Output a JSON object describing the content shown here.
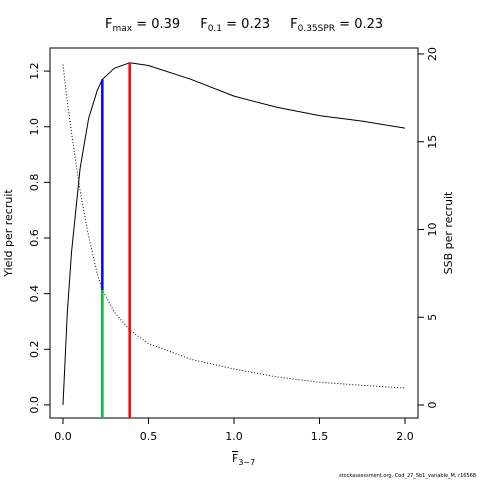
{
  "chart_data": {
    "type": "line",
    "title_parts": [
      {
        "main": "F",
        "sub": "max",
        "rest": " = 0.39"
      },
      {
        "main": "F",
        "sub": "0.1",
        "rest": " = 0.23"
      },
      {
        "main": "F",
        "sub": "0.35SPR",
        "rest": " = 0.23"
      }
    ],
    "xlabel": {
      "main": "F",
      "sub": "3−7"
    },
    "ylabel": "Yield per recruit",
    "y2label": "SSB per recruit",
    "footnote": "stockassessment.org, Cod_27_5b1_variable_M, r16568",
    "xlim": [
      -0.076,
      2.076
    ],
    "ylim": [
      -0.047,
      1.283
    ],
    "y2lim": [
      -0.74,
      20.34
    ],
    "xticks": [
      {
        "value": 0,
        "label": "0.0"
      },
      0.5,
      {
        "value": 1,
        "label": "1.0"
      },
      1.5,
      {
        "value": 2,
        "label": "2.0"
      }
    ],
    "yticks": [
      {
        "value": 0,
        "label": "0.0"
      },
      0.2,
      0.4,
      0.6,
      0.8,
      {
        "value": 1,
        "label": "1.0"
      },
      1.2
    ],
    "y2ticks": [
      0,
      5,
      10,
      15,
      20
    ],
    "series": [
      {
        "color": "#000000",
        "style": "solid",
        "x": [
          0,
          0.025,
          0.05,
          0.1,
          0.15,
          0.2,
          0.23,
          0.3,
          0.39,
          0.5,
          0.75,
          1.0,
          1.25,
          1.5,
          1.75,
          2.0
        ],
        "values": [
          0,
          0.33,
          0.55,
          0.85,
          1.03,
          1.13,
          1.17,
          1.21,
          1.23,
          1.22,
          1.17,
          1.11,
          1.07,
          1.04,
          1.02,
          0.995
        ]
      },
      {
        "color": "#000000",
        "style": "dotted",
        "axis": "y2",
        "x": [
          0,
          0.025,
          0.05,
          0.1,
          0.15,
          0.2,
          0.23,
          0.3,
          0.39,
          0.5,
          0.75,
          1.0,
          1.25,
          1.5,
          1.75,
          2.0
        ],
        "values": [
          19.4,
          17.3,
          15.5,
          12.2,
          9.6,
          7.5,
          6.55,
          5.3,
          4.27,
          3.5,
          2.6,
          2.05,
          1.6,
          1.3,
          1.12,
          0.97
        ]
      }
    ],
    "reference_lines": [
      {
        "x": 0.23,
        "y": 1.17,
        "color": "#0000ff"
      },
      {
        "x": 0.23,
        "y": 6.55,
        "color": "#00cc33",
        "axis": "y2"
      },
      {
        "x": 0.39,
        "y": 1.23,
        "color": "#ff0000"
      }
    ]
  }
}
